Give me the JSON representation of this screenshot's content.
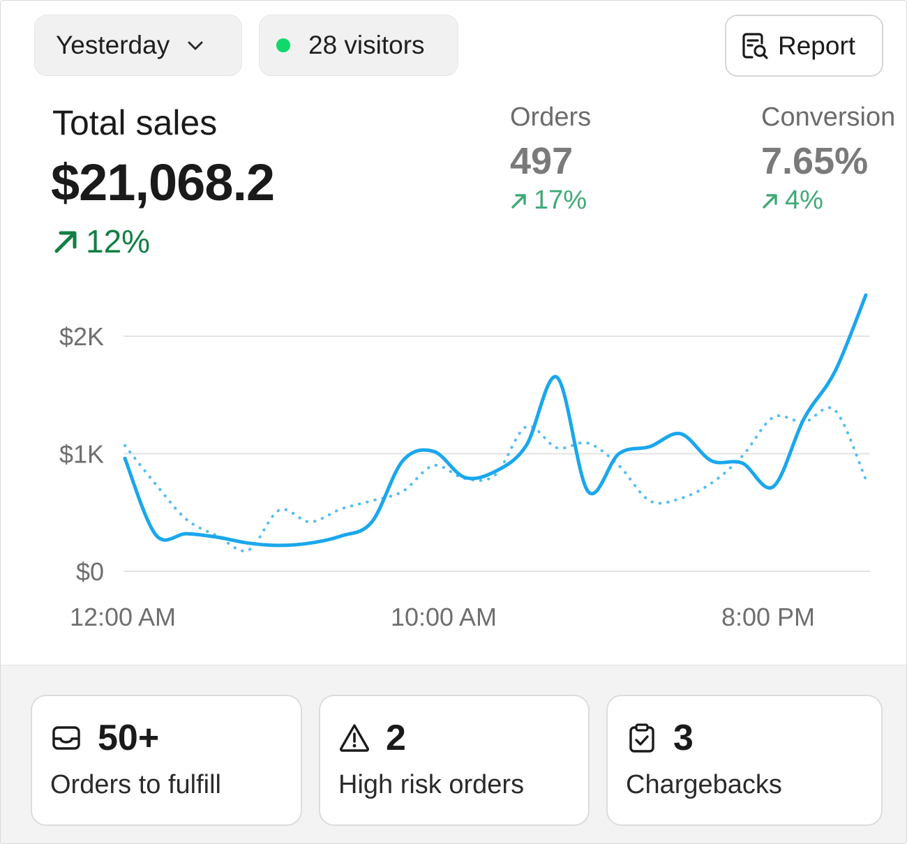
{
  "filters": {
    "date_range": "Yesterday",
    "visitors": "28 visitors",
    "report_label": "Report"
  },
  "total_sales": {
    "label": "Total sales",
    "value": "$21,068.2",
    "change": "12%"
  },
  "orders": {
    "label": "Orders",
    "value": "497",
    "change": "17%"
  },
  "conversion": {
    "label": "Conversion",
    "value": "7.65%",
    "change": "4%"
  },
  "colors": {
    "accent_line": "#1aa7ec",
    "positive_strong": "#108043",
    "positive_soft": "#3eaa76",
    "live_dot": "#10d96a"
  },
  "chart_data": {
    "type": "line",
    "y_ticks": [
      "$2K",
      "$1K",
      "$0"
    ],
    "x_ticks": [
      "12:00 AM",
      "10:00 AM",
      "8:00 PM"
    ],
    "ylim": [
      0,
      2400
    ],
    "grid": true,
    "series": [
      {
        "style": "solid",
        "values": [
          960,
          310,
          320,
          290,
          240,
          220,
          240,
          300,
          420,
          940,
          1020,
          800,
          850,
          1070,
          1650,
          680,
          1000,
          1060,
          1170,
          940,
          920,
          720,
          1300,
          1700,
          2350
        ]
      },
      {
        "style": "dotted",
        "values": [
          1070,
          740,
          440,
          300,
          180,
          520,
          420,
          530,
          600,
          680,
          900,
          790,
          820,
          1230,
          1050,
          1090,
          900,
          600,
          620,
          750,
          980,
          1310,
          1270,
          1370,
          780
        ]
      }
    ]
  },
  "cards": [
    {
      "value": "50+",
      "label": "Orders to fulfill",
      "icon": "inbox-icon"
    },
    {
      "value": "2",
      "label": "High risk orders",
      "icon": "alert-triangle-icon"
    },
    {
      "value": "3",
      "label": "Chargebacks",
      "icon": "clipboard-check-icon"
    }
  ]
}
